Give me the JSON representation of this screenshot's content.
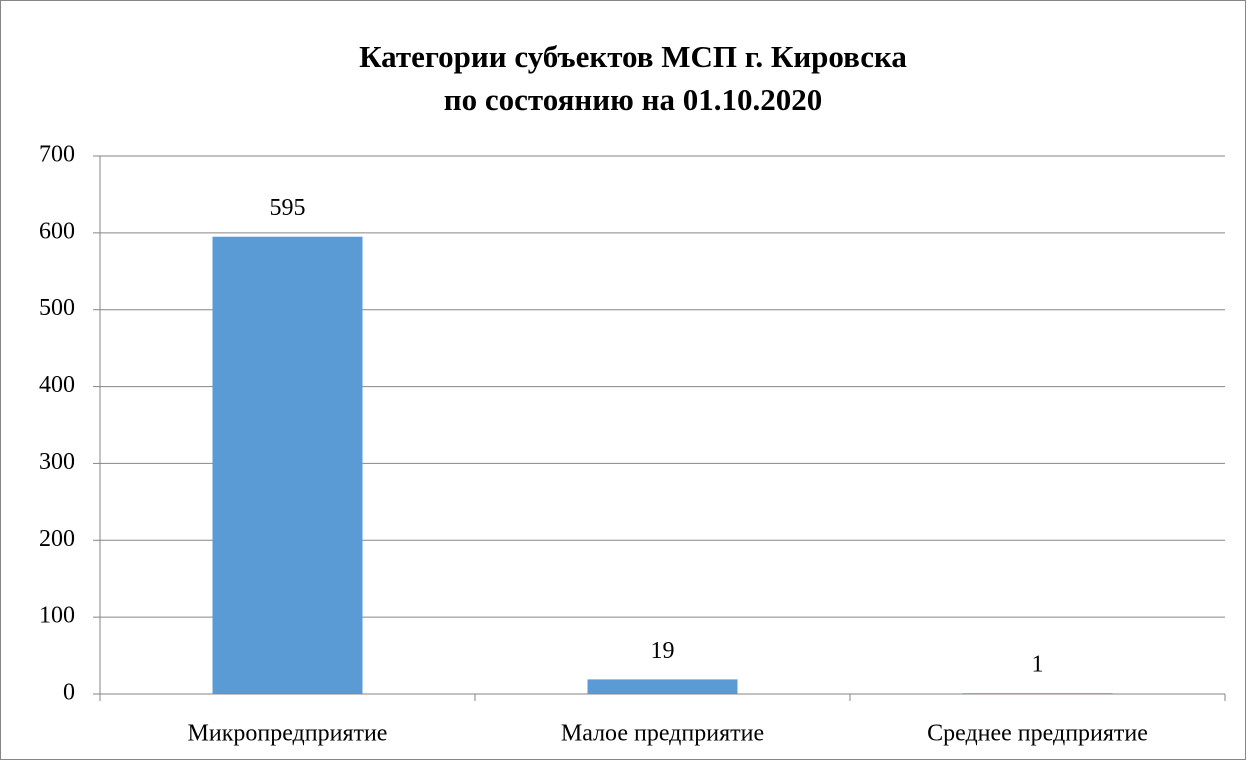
{
  "chart_data": {
    "type": "bar",
    "title": [
      "Категории субъектов МСП г. Кировска",
      "по состоянию на 01.10.2020"
    ],
    "categories": [
      "Микропредприятие",
      "Малое предприятие",
      "Среднее предприятие"
    ],
    "values": [
      595,
      19,
      1
    ],
    "color": "#5b9bd5",
    "ylim": [
      0,
      700
    ],
    "yticks": [
      0,
      100,
      200,
      300,
      400,
      500,
      600,
      700
    ],
    "grid": true
  }
}
